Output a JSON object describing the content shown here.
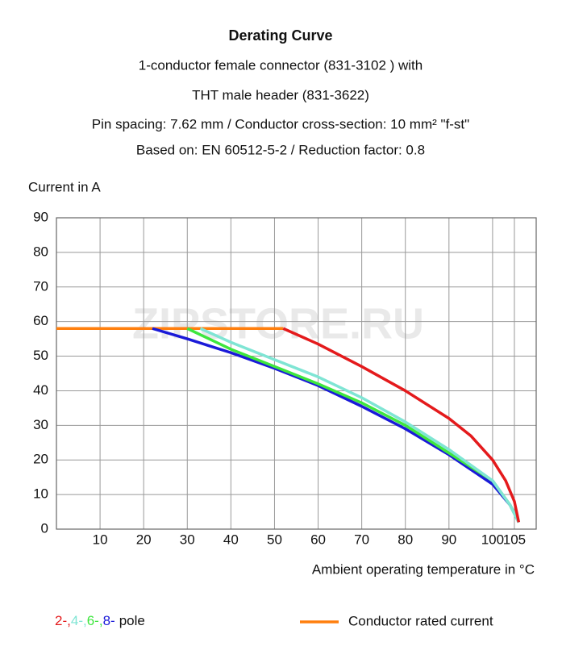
{
  "chart_data": {
    "type": "line",
    "title": "Derating Curve",
    "subtitle": [
      "1-conductor female connector (831-3102 ) with",
      "THT male header (831-3622)",
      "Pin spacing: 7.62 mm / Conductor cross-section: 10 mm² \"f-st\"",
      "Based on: EN 60512-5-2 / Reduction factor: 0.8"
    ],
    "y_label": "Current in A",
    "x_label": "Ambient operating temperature in °C",
    "watermark": "ZIPSTORE.RU",
    "xlim": [
      0,
      110
    ],
    "ylim": [
      0,
      90
    ],
    "xticks": [
      10,
      20,
      30,
      40,
      50,
      60,
      70,
      80,
      90,
      100,
      105
    ],
    "yticks": [
      0,
      10,
      20,
      30,
      40,
      50,
      60,
      70,
      80,
      90
    ],
    "grid": true,
    "legend_separator": ",",
    "legend_suffix": "pole",
    "series": [
      {
        "name": "2-",
        "color": "#e41a1c",
        "x": [
          52,
          60,
          70,
          80,
          90,
          95,
          100,
          103,
          105,
          106
        ],
        "values": [
          58,
          53.5,
          47,
          40,
          32,
          27,
          20,
          14,
          8,
          2
        ]
      },
      {
        "name": "4-",
        "color": "#7fe5d4",
        "x": [
          33,
          40,
          50,
          60,
          70,
          80,
          90,
          100,
          104,
          106
        ],
        "values": [
          58,
          54,
          49,
          44,
          38,
          31,
          23,
          14,
          7,
          2
        ]
      },
      {
        "name": "6-",
        "color": "#3ee63e",
        "x": [
          30,
          40,
          50,
          60,
          70,
          80,
          90,
          100,
          104,
          106
        ],
        "values": [
          58,
          52,
          47,
          42,
          36.5,
          30,
          22,
          14,
          7,
          2
        ]
      },
      {
        "name": "8-",
        "color": "#1a1ad8",
        "x": [
          22,
          30,
          40,
          50,
          60,
          70,
          80,
          90,
          100,
          104,
          106
        ],
        "values": [
          58,
          55,
          51,
          46.5,
          41.5,
          35.5,
          29,
          21.5,
          13,
          7,
          2
        ]
      },
      {
        "name": "Conductor rated current",
        "color": "#ff7f0e",
        "x": [
          0,
          52
        ],
        "values": [
          58,
          58
        ]
      }
    ]
  }
}
